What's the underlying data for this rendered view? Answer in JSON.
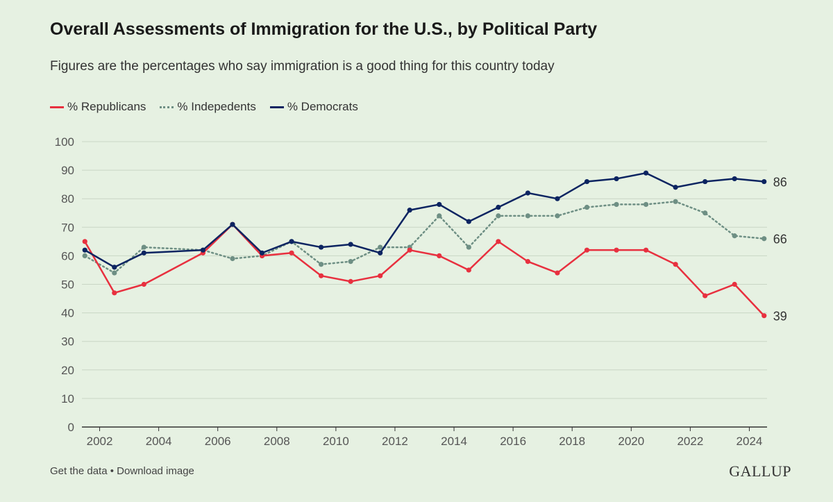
{
  "header": {
    "title": "Overall Assessments of Immigration for the U.S., by Political Party",
    "subtitle": "Figures are the percentages who say immigration is a good thing for this country today"
  },
  "footer": {
    "get_data": "Get the data",
    "separator": "•",
    "download": "Download image",
    "brand": "GALLUP"
  },
  "colors": {
    "republicans": "#e8303f",
    "independents": "#6e8f84",
    "democrats": "#0c2461",
    "grid": "#c9d6c5",
    "axis": "#333333"
  },
  "chart_data": {
    "type": "line",
    "title": "Overall Assessments of Immigration for the U.S., by Political Party",
    "xlabel": "",
    "ylabel": "",
    "ylim": [
      0,
      100
    ],
    "yticks": [
      0,
      10,
      20,
      30,
      40,
      50,
      60,
      70,
      80,
      90,
      100
    ],
    "xlim": [
      2001.4,
      2024.6
    ],
    "xticks": [
      2002,
      2004,
      2006,
      2008,
      2010,
      2012,
      2014,
      2016,
      2018,
      2020,
      2022,
      2024
    ],
    "legend_position": "top-left",
    "grid": true,
    "x": [
      2001.5,
      2002.5,
      2003.5,
      2005.5,
      2006.5,
      2007.5,
      2008.5,
      2009.5,
      2010.5,
      2011.5,
      2012.5,
      2013.5,
      2014.5,
      2015.5,
      2016.5,
      2017.5,
      2018.5,
      2019.5,
      2020.5,
      2021.5,
      2022.5,
      2023.5,
      2024.5
    ],
    "series": [
      {
        "name": "% Republicans",
        "key": "republicans",
        "style": "solid",
        "values": [
          65,
          47,
          50,
          61,
          71,
          60,
          61,
          53,
          51,
          53,
          62,
          60,
          55,
          65,
          58,
          54,
          62,
          62,
          62,
          57,
          46,
          50,
          39
        ],
        "end_label": "39"
      },
      {
        "name": "% Indepedents",
        "key": "independents",
        "style": "dotted",
        "values": [
          60,
          54,
          63,
          62,
          59,
          60,
          65,
          57,
          58,
          63,
          63,
          74,
          63,
          74,
          74,
          74,
          77,
          78,
          78,
          79,
          75,
          67,
          66
        ],
        "end_label": "66"
      },
      {
        "name": "% Democrats",
        "key": "democrats",
        "style": "solid",
        "values": [
          62,
          56,
          61,
          62,
          71,
          61,
          65,
          63,
          64,
          61,
          76,
          78,
          72,
          77,
          82,
          80,
          86,
          87,
          89,
          84,
          86,
          87,
          86
        ],
        "end_label": "86"
      }
    ]
  }
}
